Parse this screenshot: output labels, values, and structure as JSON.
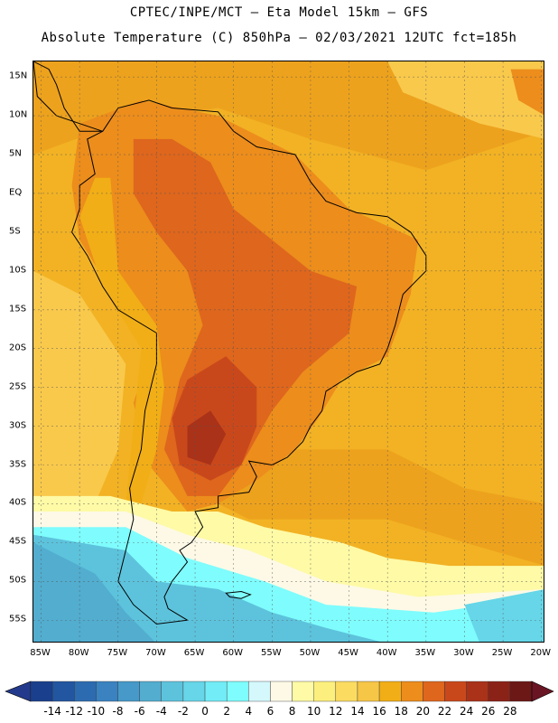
{
  "header": {
    "line1": "CPTEC/INPE/MCT –  Eta Model 15km – GFS",
    "line2": "Absolute Temperature (C) 850hPa – 02/03/2021 12UTC fct=185h"
  },
  "map": {
    "lat_labels": [
      "15N",
      "10N",
      "5N",
      "EQ",
      "5S",
      "10S",
      "15S",
      "20S",
      "25S",
      "30S",
      "35S",
      "40S",
      "45S",
      "50S",
      "55S"
    ],
    "lat_values": [
      15,
      10,
      5,
      0,
      -5,
      -10,
      -15,
      -20,
      -25,
      -30,
      -35,
      -40,
      -45,
      -50,
      -55
    ],
    "lon_labels": [
      "85W",
      "80W",
      "75W",
      "70W",
      "65W",
      "60W",
      "55W",
      "50W",
      "45W",
      "40W",
      "35W",
      "30W",
      "25W",
      "20W"
    ],
    "lon_values": [
      -85,
      -80,
      -75,
      -70,
      -65,
      -60,
      -55,
      -50,
      -45,
      -40,
      -35,
      -30,
      -25,
      -20
    ],
    "extent": {
      "lon_min": -86,
      "lon_max": -19.5,
      "lat_min": -58,
      "lat_max": 17
    },
    "grid_lines": true,
    "field": "Absolute Temperature (C) 850hPa"
  },
  "colorbar": {
    "ticks": [
      "-14",
      "-12",
      "-10",
      "-8",
      "-6",
      "-4",
      "-2",
      "0",
      "2",
      "4",
      "6",
      "8",
      "10",
      "12",
      "14",
      "16",
      "18",
      "20",
      "22",
      "24",
      "26",
      "28"
    ],
    "colors": [
      "#1a3f8c",
      "#2356a0",
      "#2d6bb0",
      "#3a82c0",
      "#4699c8",
      "#52adcf",
      "#5dc3dc",
      "#66d6e8",
      "#72ecf6",
      "#7ffcfd",
      "#d4f8fc",
      "#fdf9e6",
      "#fefaa6",
      "#fdef7d",
      "#fbdc61",
      "#f6c647",
      "#f1ae16",
      "#ec8d1c",
      "#de661d",
      "#c9481b",
      "#a93219",
      "#8b2218",
      "#6b1816"
    ],
    "bound_colors": {
      "low": "#233a8c",
      "high": "#6a1524"
    }
  }
}
